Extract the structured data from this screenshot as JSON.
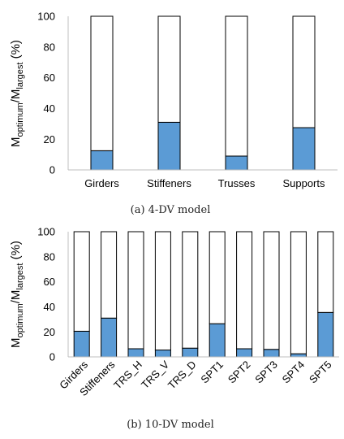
{
  "chart_data": [
    {
      "type": "bar",
      "stacked": true,
      "caption": "(a) 4-DV model",
      "ylabel": {
        "main": "M",
        "sub1": "optimum",
        "slash": "/M",
        "sub2": "largest",
        "unit": " (%)"
      },
      "ylim": [
        0,
        100
      ],
      "yticks": [
        0,
        20,
        40,
        60,
        80,
        100
      ],
      "grid": false,
      "categories": [
        "Girders",
        "Stiffeners",
        "Trusses",
        "Supports"
      ],
      "series": [
        {
          "values": [
            12.5,
            31,
            9,
            27.5
          ],
          "color": "#5b9bd5"
        },
        {
          "values": [
            87.5,
            69,
            91,
            72.5
          ],
          "color": "#ffffff"
        }
      ]
    },
    {
      "type": "bar",
      "stacked": true,
      "caption": "(b) 10-DV model",
      "ylabel": {
        "main": "M",
        "sub1": "optimum",
        "slash": "/M",
        "sub2": "largest",
        "unit": " (%)"
      },
      "ylim": [
        0,
        100
      ],
      "yticks": [
        0,
        20,
        40,
        60,
        80,
        100
      ],
      "grid": false,
      "categories": [
        "Girders",
        "Stiffeners",
        "TRS_H",
        "TRS_V",
        "TRS_D",
        "SPT1",
        "SPT2",
        "SPT3",
        "SPT4",
        "SPT5"
      ],
      "series": [
        {
          "values": [
            20.5,
            31,
            6.5,
            5.5,
            7,
            26.5,
            6.5,
            6,
            2.5,
            35.5
          ],
          "color": "#5b9bd5"
        },
        {
          "values": [
            79.5,
            69,
            93.5,
            94.5,
            93,
            73.5,
            93.5,
            94,
            97.5,
            64.5
          ],
          "color": "#ffffff"
        }
      ]
    }
  ]
}
